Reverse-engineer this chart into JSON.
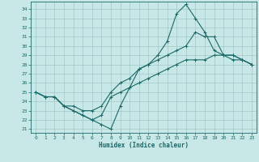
{
  "xlabel": "Humidex (Indice chaleur)",
  "background_color": "#c8e8e8",
  "grid_color": "#a0c8c8",
  "line_color": "#1a6868",
  "xlim": [
    -0.5,
    23.5
  ],
  "ylim": [
    20.6,
    34.8
  ],
  "yticks": [
    21,
    22,
    23,
    24,
    25,
    26,
    27,
    28,
    29,
    30,
    31,
    32,
    33,
    34
  ],
  "xticks": [
    0,
    1,
    2,
    3,
    4,
    5,
    6,
    7,
    8,
    9,
    10,
    11,
    12,
    13,
    14,
    15,
    16,
    17,
    18,
    19,
    20,
    21,
    22,
    23
  ],
  "line1_x": [
    0,
    1,
    2,
    3,
    4,
    5,
    6,
    7,
    8,
    9,
    10,
    11,
    12,
    13,
    14,
    15,
    16,
    17,
    18,
    19,
    20,
    21,
    22,
    23
  ],
  "line1_y": [
    25,
    24.5,
    24.5,
    23.5,
    23.0,
    22.5,
    22.0,
    21.5,
    21.0,
    23.5,
    25.5,
    27.5,
    28.0,
    29.0,
    30.5,
    33.5,
    34.5,
    33.0,
    31.5,
    29.5,
    29.0,
    28.5,
    28.5,
    28.0
  ],
  "line2_x": [
    0,
    1,
    2,
    3,
    4,
    5,
    6,
    7,
    8,
    9,
    10,
    11,
    12,
    13,
    14,
    15,
    16,
    17,
    18,
    19,
    20,
    21,
    22,
    23
  ],
  "line2_y": [
    25,
    24.5,
    24.5,
    23.5,
    23.5,
    23.0,
    23.0,
    23.5,
    25.0,
    26.0,
    26.5,
    27.5,
    28.0,
    28.5,
    29.0,
    29.5,
    30.0,
    31.5,
    31.0,
    31.0,
    29.0,
    29.0,
    28.5,
    28.0
  ],
  "line3_x": [
    0,
    1,
    2,
    3,
    4,
    5,
    6,
    7,
    8,
    9,
    10,
    11,
    12,
    13,
    14,
    15,
    16,
    17,
    18,
    19,
    20,
    21,
    22,
    23
  ],
  "line3_y": [
    25,
    24.5,
    24.5,
    23.5,
    23.0,
    22.5,
    22.0,
    22.5,
    24.5,
    25.0,
    25.5,
    26.0,
    26.5,
    27.0,
    27.5,
    28.0,
    28.5,
    28.5,
    28.5,
    29.0,
    29.0,
    29.0,
    28.5,
    28.0
  ]
}
